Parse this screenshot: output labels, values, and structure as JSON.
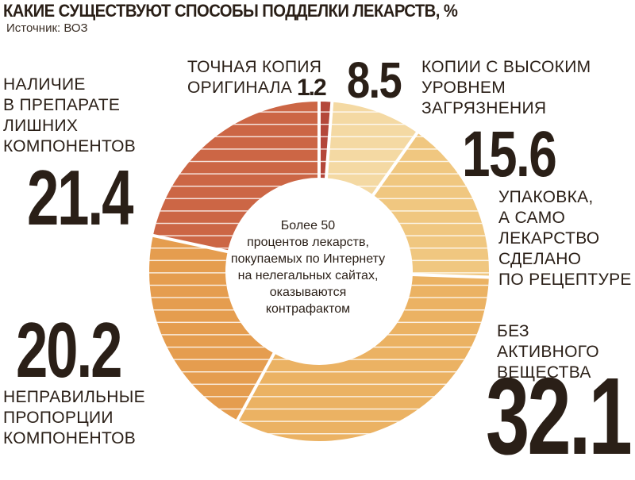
{
  "title": "КАКИЕ СУЩЕСТВУЮТ СПОСОБЫ ПОДДЕЛКИ  ЛЕКАРСТВ, %",
  "source": "Источник: ВОЗ",
  "center_note": "Более 50\nпроцентов лекарств,\nпокупаемых по Интернету\nна нелегальных сайтах,\nоказываются\nконтрафактом",
  "colors": {
    "text": "#2a1f17",
    "divider": "#ffffff",
    "stripe": "#ffffff"
  },
  "chart_data": {
    "type": "pie",
    "donut": true,
    "start_angle_deg": 0,
    "direction": "clockwise",
    "slices": [
      {
        "key": "exact",
        "label": "ТОЧНАЯ КОПИЯ ОРИГИНАЛА",
        "value": 1.2,
        "value_label": "1.2",
        "color": "#b4473a"
      },
      {
        "key": "contaminated",
        "label": "КОПИИ С ВЫСОКИМ УРОВНЕМ ЗАГРЯЗНЕНИЯ",
        "value": 8.5,
        "value_label": "8.5",
        "color": "#f4d9a3"
      },
      {
        "key": "prescription",
        "label": "УПАКОВКА, А САМО ЛЕКАРСТВО СДЕЛАНО ПО РЕЦЕПТУРЕ",
        "value": 15.6,
        "value_label": "15.6",
        "color": "#f0c780"
      },
      {
        "key": "no_active",
        "label": "БЕЗ АКТИВНОГО ВЕЩЕСТВА",
        "value": 32.1,
        "value_label": "32.1",
        "color": "#ebb263"
      },
      {
        "key": "wrong_prop",
        "label": "НЕПРАВИЛЬНЫЕ ПРОПОРЦИИ КОМПОНЕНТОВ",
        "value": 20.2,
        "value_label": "20.2",
        "color": "#e59d4f"
      },
      {
        "key": "extra",
        "label": "НАЛИЧИЕ В ПРЕПАРАТЕ ЛИШНИХ КОМПОНЕНТОВ",
        "value": 21.4,
        "value_label": "21.4",
        "color": "#cc6645"
      }
    ]
  },
  "labels": {
    "exact": "ТОЧНАЯ КОПИЯ\nОРИГИНАЛА",
    "contaminated": "КОПИИ С ВЫСОКИМ\nУРОВНЕМ ЗАГРЯЗНЕНИЯ",
    "prescription": "УПАКОВКА,\nА САМО\nЛЕКАРСТВО\nСДЕЛАНО\nПО РЕЦЕПТУРЕ",
    "no_active": "БЕЗ АКТИВНОГО\nВЕЩЕСТВА",
    "wrong_prop": "НЕПРАВИЛЬНЫЕ\nПРОПОРЦИИ\nКОМПОНЕНТОВ",
    "extra": "НАЛИЧИЕ\nВ ПРЕПАРАТЕ\nЛИШНИХ\nКОМПОНЕНТОВ"
  }
}
